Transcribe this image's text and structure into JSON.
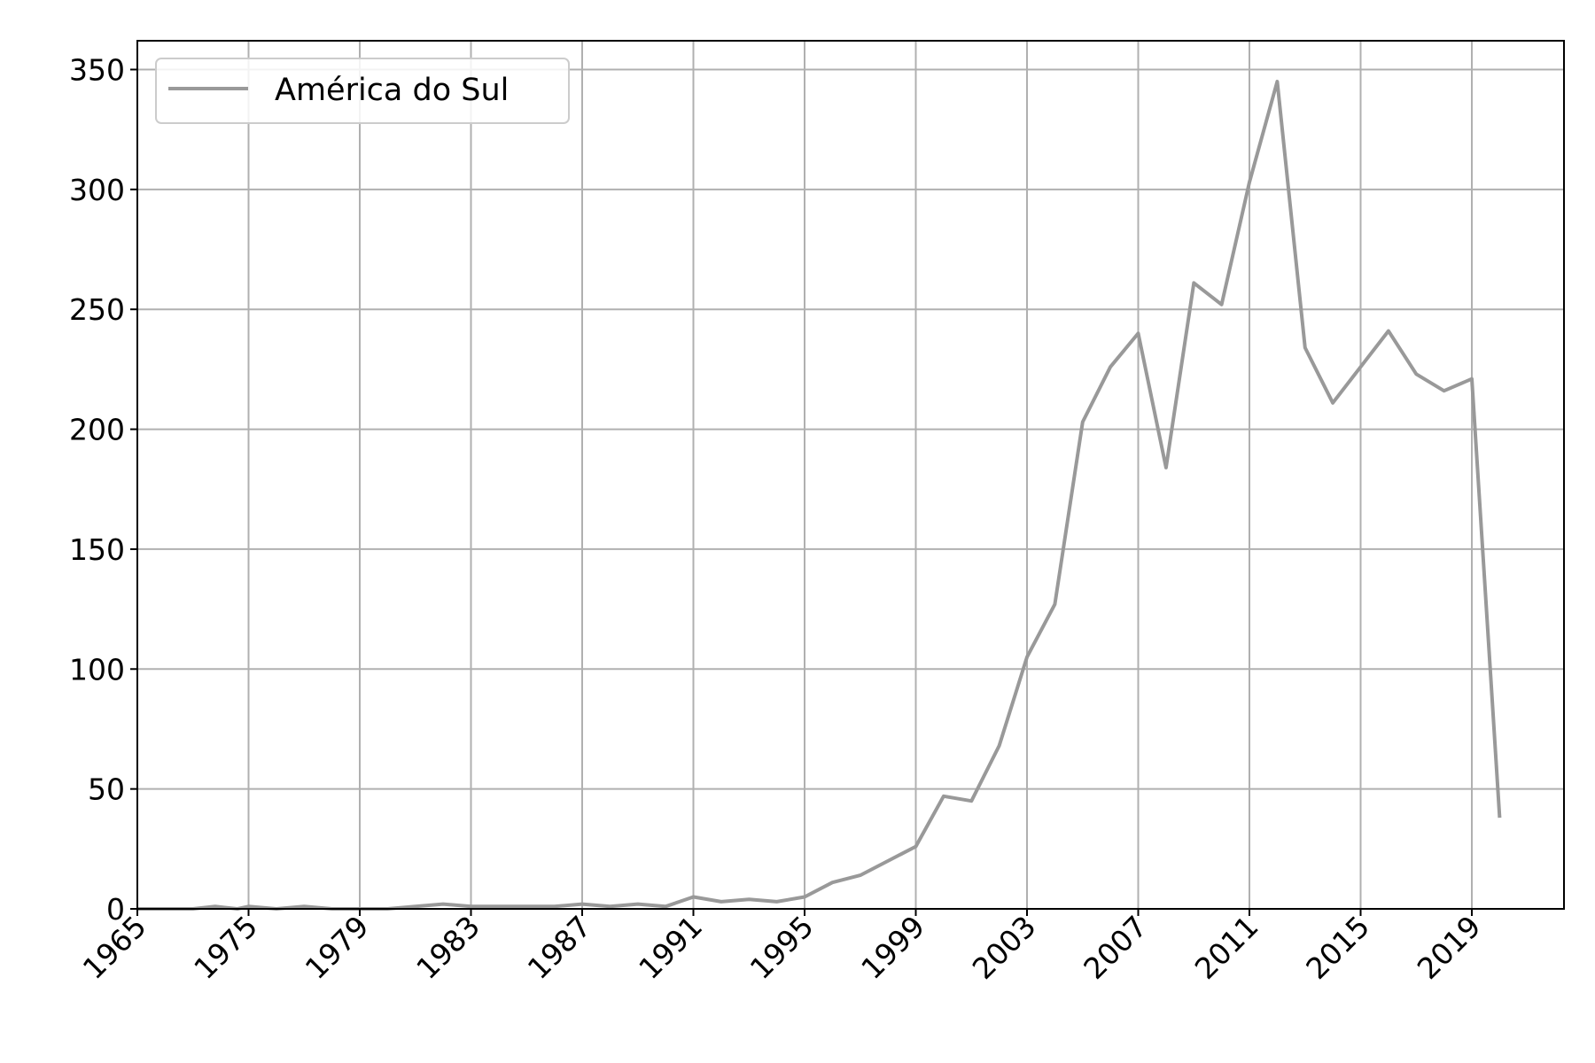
{
  "chart_data": {
    "type": "line",
    "title": "",
    "xlabel": "",
    "ylabel": "",
    "x_tick_labels": [
      "1965",
      "1975",
      "1979",
      "1983",
      "1987",
      "1991",
      "1995",
      "1999",
      "2003",
      "2007",
      "2011",
      "2015",
      "2019"
    ],
    "y_ticks": [
      0,
      50,
      100,
      150,
      200,
      250,
      300,
      350
    ],
    "ylim": [
      0,
      362
    ],
    "grid": true,
    "legend_position": "top-left",
    "colors": {
      "line": "#999999",
      "grid": "#b0b0b0",
      "axis": "#000000"
    },
    "series": [
      {
        "name": "América do Sul",
        "points": [
          [
            "1965",
            0
          ],
          [
            "1970",
            0
          ],
          [
            "1972",
            1
          ],
          [
            "1974",
            0
          ],
          [
            "1975",
            1
          ],
          [
            "1976",
            0
          ],
          [
            "1977",
            1
          ],
          [
            "1978",
            0
          ],
          [
            "1979",
            0
          ],
          [
            "1980",
            0
          ],
          [
            "1981",
            1
          ],
          [
            "1982",
            2
          ],
          [
            "1983",
            1
          ],
          [
            "1984",
            1
          ],
          [
            "1985",
            1
          ],
          [
            "1986",
            1
          ],
          [
            "1987",
            2
          ],
          [
            "1988",
            1
          ],
          [
            "1989",
            2
          ],
          [
            "1990",
            1
          ],
          [
            "1991",
            5
          ],
          [
            "1992",
            3
          ],
          [
            "1993",
            4
          ],
          [
            "1994",
            3
          ],
          [
            "1995",
            5
          ],
          [
            "1996",
            11
          ],
          [
            "1997",
            14
          ],
          [
            "1998",
            20
          ],
          [
            "1999",
            26
          ],
          [
            "2000",
            47
          ],
          [
            "2001",
            45
          ],
          [
            "2002",
            68
          ],
          [
            "2003",
            105
          ],
          [
            "2004",
            127
          ],
          [
            "2005",
            203
          ],
          [
            "2006",
            226
          ],
          [
            "2007",
            240
          ],
          [
            "2008",
            184
          ],
          [
            "2009",
            261
          ],
          [
            "2010",
            252
          ],
          [
            "2011",
            303
          ],
          [
            "2012",
            345
          ],
          [
            "2013",
            234
          ],
          [
            "2014",
            211
          ],
          [
            "2015",
            226
          ],
          [
            "2016",
            241
          ],
          [
            "2017",
            223
          ],
          [
            "2018",
            216
          ],
          [
            "2019",
            221
          ],
          [
            "2020",
            38
          ]
        ]
      }
    ]
  }
}
